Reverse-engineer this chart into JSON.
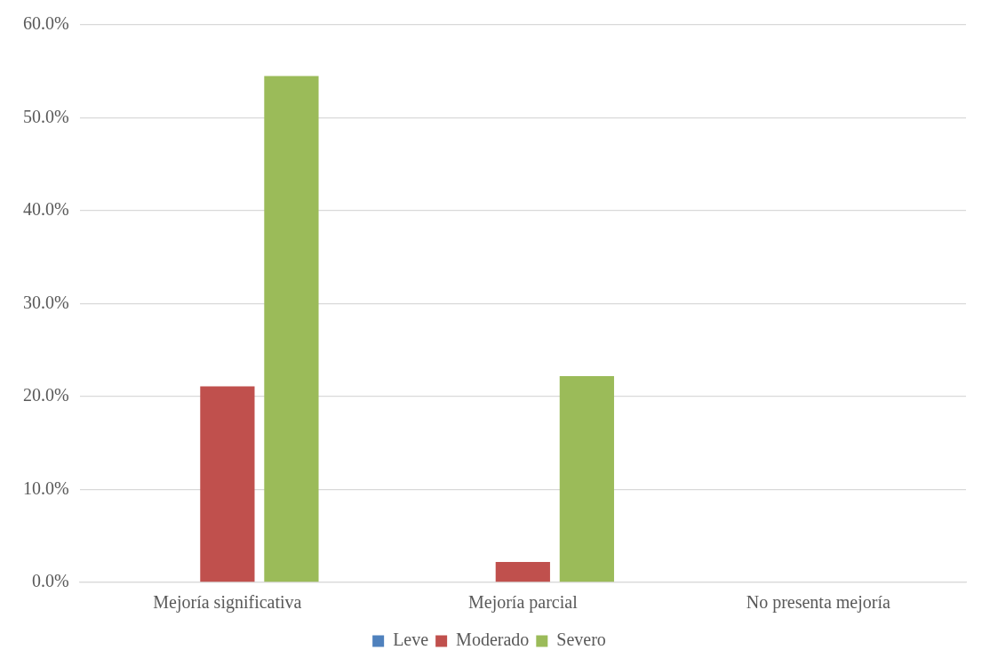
{
  "chart_data": {
    "type": "bar",
    "categories": [
      "Mejoría significativa",
      "Mejoría parcial",
      "No presenta mejoría"
    ],
    "series": [
      {
        "name": "Leve",
        "color": "#4f81bd",
        "values": [
          0,
          0,
          0
        ]
      },
      {
        "name": "Moderado",
        "color": "#c0504d",
        "values": [
          21.1,
          2.2,
          0
        ]
      },
      {
        "name": "Severo",
        "color": "#9bbb59",
        "values": [
          54.5,
          22.2,
          0
        ]
      }
    ],
    "ylim": [
      0,
      60
    ],
    "yticks": [
      {
        "value": 0,
        "label": "0.0%"
      },
      {
        "value": 10,
        "label": "10.0%"
      },
      {
        "value": 20,
        "label": "20.0%"
      },
      {
        "value": 30,
        "label": "30.0%"
      },
      {
        "value": 40,
        "label": "40.0%"
      },
      {
        "value": 50,
        "label": "50.0%"
      },
      {
        "value": 60,
        "label": "60.0%"
      }
    ],
    "grid": "y",
    "legend": "bottom"
  }
}
